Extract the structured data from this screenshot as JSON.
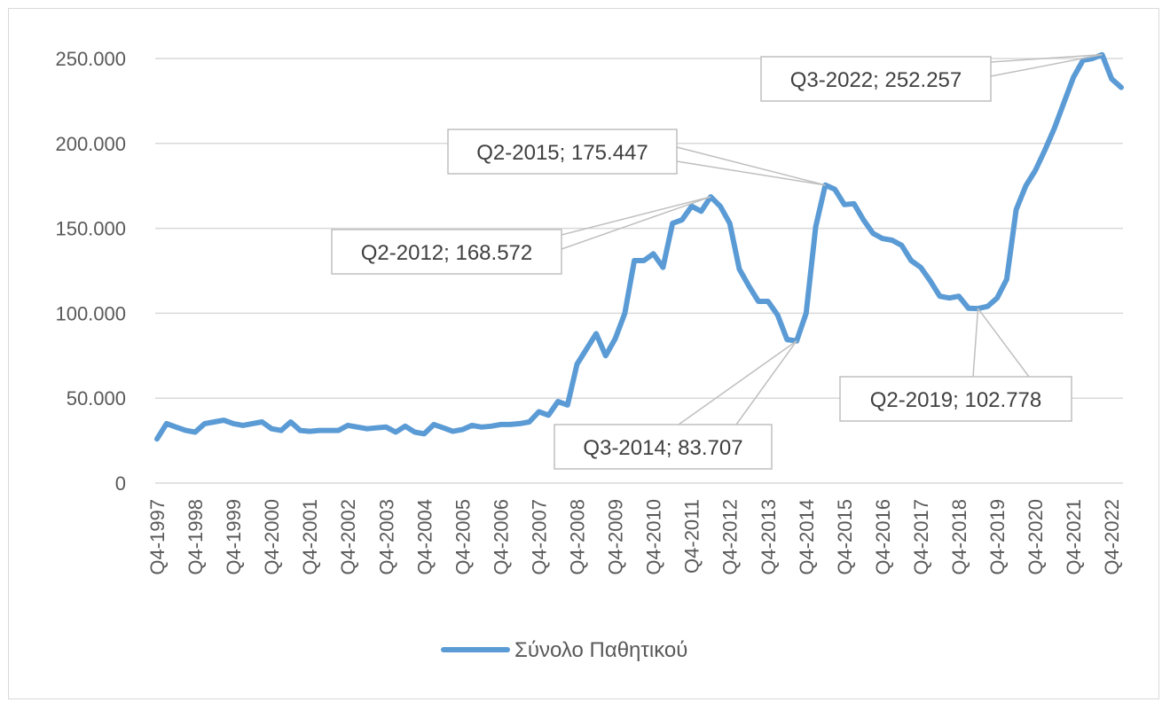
{
  "chart_data": {
    "type": "line",
    "title": "",
    "xlabel": "",
    "ylabel": "",
    "ylim": [
      0,
      250000
    ],
    "y_ticks": [
      "0",
      "50.000",
      "100.000",
      "150.000",
      "200.000",
      "250.000"
    ],
    "y_tick_values": [
      0,
      50000,
      100000,
      150000,
      200000,
      250000
    ],
    "x_tick_labels": [
      "Q4-1997",
      "Q4-1998",
      "Q4-1999",
      "Q4-2000",
      "Q4-2001",
      "Q4-2002",
      "Q4-2003",
      "Q4-2004",
      "Q4-2005",
      "Q4-2006",
      "Q4-2007",
      "Q4-2008",
      "Q4-2009",
      "Q4-2010",
      "Q4-2011",
      "Q4-2012",
      "Q4-2013",
      "Q4-2014",
      "Q4-2015",
      "Q4-2016",
      "Q4-2017",
      "Q4-2018",
      "Q4-2019",
      "Q4-2020",
      "Q4-2021",
      "Q4-2022"
    ],
    "grid": true,
    "legend_position": "bottom",
    "series": [
      {
        "name": "Σύνολο Παθητικού",
        "color": "#5b9bd5",
        "x": [
          "Q4-1997",
          "Q1-1998",
          "Q2-1998",
          "Q3-1998",
          "Q4-1998",
          "Q1-1999",
          "Q2-1999",
          "Q3-1999",
          "Q4-1999",
          "Q1-2000",
          "Q2-2000",
          "Q3-2000",
          "Q4-2000",
          "Q1-2001",
          "Q2-2001",
          "Q3-2001",
          "Q4-2001",
          "Q1-2002",
          "Q2-2002",
          "Q3-2002",
          "Q4-2002",
          "Q1-2003",
          "Q2-2003",
          "Q3-2003",
          "Q4-2003",
          "Q1-2004",
          "Q2-2004",
          "Q3-2004",
          "Q4-2004",
          "Q1-2005",
          "Q2-2005",
          "Q3-2005",
          "Q4-2005",
          "Q1-2006",
          "Q2-2006",
          "Q3-2006",
          "Q4-2006",
          "Q1-2007",
          "Q2-2007",
          "Q3-2007",
          "Q4-2007",
          "Q1-2008",
          "Q2-2008",
          "Q3-2008",
          "Q4-2008",
          "Q1-2009",
          "Q2-2009",
          "Q3-2009",
          "Q4-2009",
          "Q1-2010",
          "Q2-2010",
          "Q3-2010",
          "Q4-2010",
          "Q1-2011",
          "Q2-2011",
          "Q3-2011",
          "Q4-2011",
          "Q1-2012",
          "Q2-2012",
          "Q3-2012",
          "Q4-2012",
          "Q1-2013",
          "Q2-2013",
          "Q3-2013",
          "Q4-2013",
          "Q1-2014",
          "Q2-2014",
          "Q3-2014",
          "Q4-2014",
          "Q1-2015",
          "Q2-2015",
          "Q3-2015",
          "Q4-2015",
          "Q1-2016",
          "Q2-2016",
          "Q3-2016",
          "Q4-2016",
          "Q1-2017",
          "Q2-2017",
          "Q3-2017",
          "Q4-2017",
          "Q1-2018",
          "Q2-2018",
          "Q3-2018",
          "Q4-2018",
          "Q1-2019",
          "Q2-2019",
          "Q3-2019",
          "Q4-2019",
          "Q1-2020",
          "Q2-2020",
          "Q3-2020",
          "Q4-2020",
          "Q1-2021",
          "Q2-2021",
          "Q3-2021",
          "Q4-2021",
          "Q1-2022",
          "Q2-2022",
          "Q3-2022",
          "Q4-2022",
          "Q1-2023"
        ],
        "values": [
          26000,
          35000,
          33000,
          31000,
          30000,
          35000,
          36000,
          37000,
          35000,
          34000,
          35000,
          36000,
          32000,
          31000,
          36000,
          31000,
          30500,
          31000,
          31000,
          31000,
          34000,
          33000,
          32000,
          32500,
          33000,
          30000,
          33500,
          30000,
          29000,
          34500,
          32500,
          30500,
          31500,
          34000,
          33000,
          33500,
          34500,
          34500,
          35000,
          36000,
          42000,
          40000,
          48000,
          46000,
          70000,
          79000,
          88000,
          75000,
          85000,
          100000,
          131000,
          131000,
          135000,
          127000,
          153000,
          155000,
          163000,
          160000,
          168572,
          163000,
          153000,
          126000,
          116000,
          107000,
          107000,
          99000,
          84500,
          83707,
          100000,
          151000,
          175447,
          173000,
          164000,
          164500,
          155000,
          147000,
          144000,
          143000,
          140000,
          131000,
          127000,
          119000,
          110000,
          109000,
          110000,
          103000,
          102778,
          104000,
          109000,
          120000,
          161000,
          175000,
          184000,
          196000,
          209000,
          224000,
          239000,
          249000,
          250000,
          252257,
          238000,
          233000
        ]
      }
    ],
    "annotations": [
      {
        "label": "Q3-2022; 252.257",
        "x": "Q3-2022",
        "value": 252257
      },
      {
        "label": "Q2-2015; 175.447",
        "x": "Q2-2015",
        "value": 175447
      },
      {
        "label": "Q2-2012; 168.572",
        "x": "Q2-2012",
        "value": 168572
      },
      {
        "label": "Q3-2014; 83.707",
        "x": "Q3-2014",
        "value": 83707
      },
      {
        "label": "Q2-2019; 102.778",
        "x": "Q2-2019",
        "value": 102778
      }
    ]
  }
}
